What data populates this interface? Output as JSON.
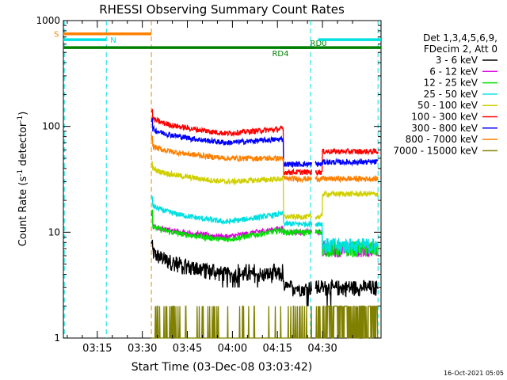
{
  "chart_data": {
    "type": "line",
    "title": "RHESSI Observing Summary Count Rates",
    "xlabel": "Start Time (03-Dec-08 03:03:42)",
    "ylabel_main": "Count Rate (s",
    "ylabel_sup": "-1",
    "ylabel_rest": " detector",
    "ylabel_end": ")",
    "yscale": "log",
    "ylim": [
      1,
      1000
    ],
    "y_ticks": [
      {
        "value": 1,
        "label": "1"
      },
      {
        "value": 10,
        "label": "10"
      },
      {
        "value": 100,
        "label": "100"
      },
      {
        "value": 1000,
        "label": "1000"
      }
    ],
    "xlim_minutes": [
      3.7,
      109.5
    ],
    "x_ticks": [
      {
        "minute": 15,
        "label": "03:15"
      },
      {
        "minute": 30,
        "label": "03:30"
      },
      {
        "minute": 45,
        "label": "03:45"
      },
      {
        "minute": 60,
        "label": "04:00"
      },
      {
        "minute": 75,
        "label": "04:15"
      },
      {
        "minute": 90,
        "label": "04:30"
      }
    ],
    "legend_header": [
      "Det 1,3,4,5,6,9,",
      "FDecim 2, Att 0"
    ],
    "series": [
      {
        "name": "3 - 6 keV",
        "color": "#000000",
        "start": 8,
        "v0": 7,
        "v1": 4,
        "v2": 4,
        "vpost": 3,
        "vend": 3
      },
      {
        "name": "6 - 12 keV",
        "color": "#e000e0",
        "start": 15,
        "v0": 12,
        "v1": 9,
        "v2": 11,
        "vpost": 10,
        "vend": 7
      },
      {
        "name": "12 - 25 keV",
        "color": "#00e000",
        "start": 16,
        "v0": 12,
        "v1": 8.5,
        "v2": 10.5,
        "vpost": 10,
        "vend": 7
      },
      {
        "name": "25 - 50 keV",
        "color": "#00e0e0",
        "start": 21,
        "v0": 19,
        "v1": 12.5,
        "v2": 15,
        "vpost": 12,
        "vend": 7.5
      },
      {
        "name": "50 - 100 keV",
        "color": "#d0d000",
        "start": 45,
        "v0": 42,
        "v1": 30,
        "v2": 32,
        "vpost": 14,
        "vend": 23
      },
      {
        "name": "100 - 300 keV",
        "color": "#ff0000",
        "start": 140,
        "v0": 125,
        "v1": 86,
        "v2": 95,
        "vpost": 37,
        "vend": 58
      },
      {
        "name": "300 - 800 keV",
        "color": "#0000ff",
        "start": 115,
        "v0": 100,
        "v1": 70,
        "v2": 76,
        "vpost": 44,
        "vend": 46
      },
      {
        "name": "800 - 7000 keV",
        "color": "#ff8000",
        "start": 80,
        "v0": 68,
        "v1": 50,
        "v2": 50,
        "vpost": 32,
        "vend": 32
      },
      {
        "name": "7000 - 15000 keV",
        "color": "#808000",
        "start": 2,
        "v0": 1,
        "v1": 1,
        "v2": 1,
        "vpost": 1,
        "vend": 1
      }
    ],
    "segments": {
      "data_start": 33,
      "decay_end": 58,
      "plateau_end": 77,
      "step1": 80,
      "step2": 90,
      "gap_start": 86.5,
      "gap_end": 87.5,
      "data_end": 108.5
    },
    "flags": [
      {
        "label": "S",
        "color": "#ff8000",
        "y": 750,
        "x_start": 3.7,
        "x_end": 33
      },
      {
        "label": "N",
        "color": "#00e0e0",
        "y": 660,
        "x_start": 3.7,
        "x_end": 18
      },
      {
        "label": "RD0",
        "color": "#008000",
        "y": 555,
        "x_start": 76,
        "x_end": 87
      },
      {
        "label": "RD4",
        "color": "#008000",
        "y": 555,
        "x_start": 3.7,
        "x_end": 109.5
      }
    ],
    "vlines": [
      {
        "minute": 4,
        "color": "#00e0e0"
      },
      {
        "minute": 18,
        "color": "#00e0e0"
      },
      {
        "minute": 33,
        "color": "#ff8000"
      },
      {
        "minute": 86,
        "color": "#00e0e0"
      },
      {
        "minute": 108.5,
        "color": "#00e0e0"
      }
    ],
    "footer_date": "16-Oct-2021 05:05"
  }
}
